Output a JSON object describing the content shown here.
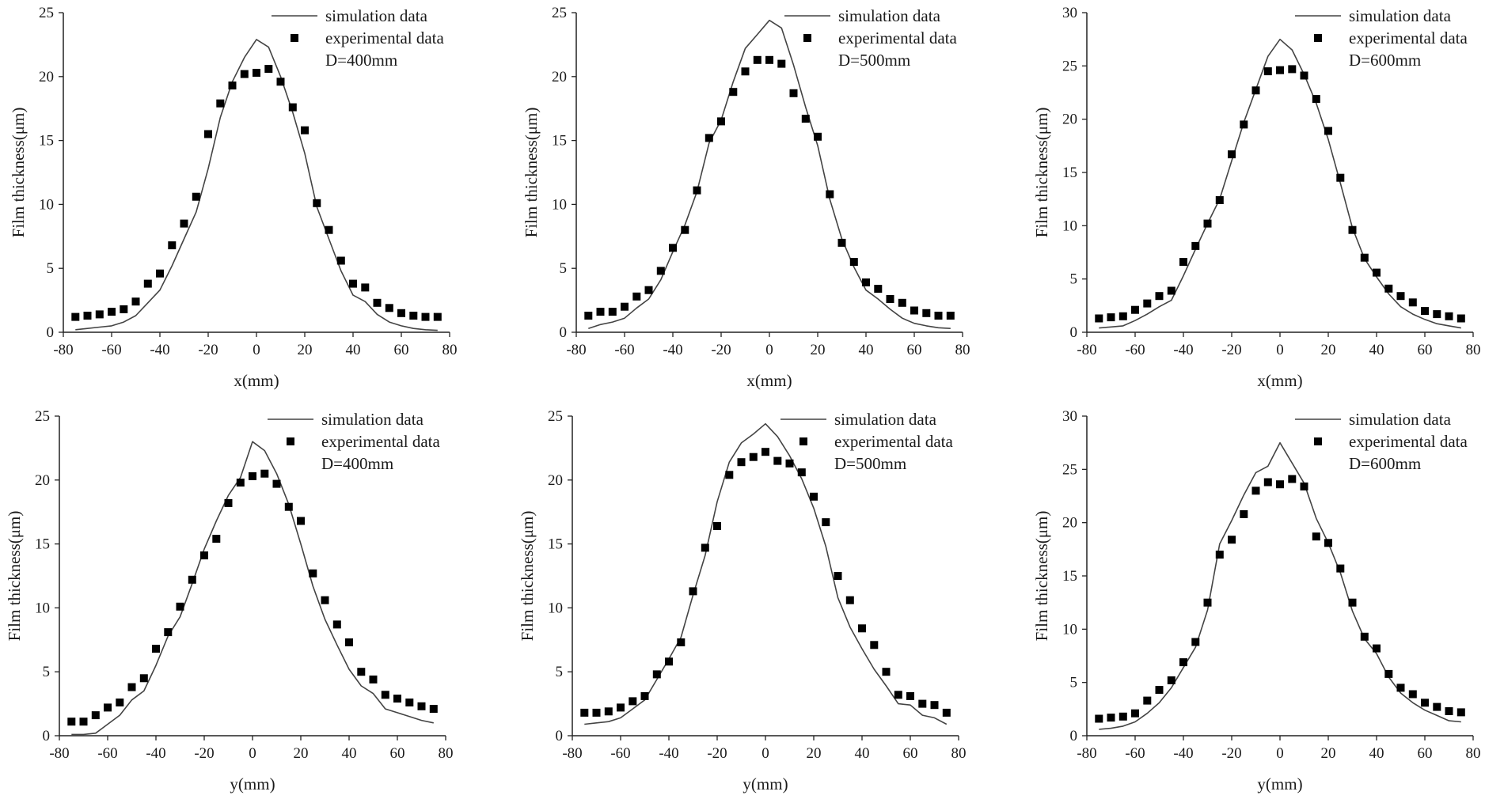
{
  "colors": {
    "line": "#444444",
    "marker": "#000000",
    "axis": "#222222",
    "text": "#1a1a1a"
  },
  "legend": {
    "line_label": "simulation data",
    "marker_label": "experimental data"
  },
  "chart_data": [
    {
      "type": "scatter+line",
      "title": "",
      "xlabel": "x(mm)",
      "ylabel": "Film thickness(μm)",
      "xlim": [
        -80,
        80
      ],
      "ylim": [
        0,
        25
      ],
      "xticks": [
        -80,
        -60,
        -40,
        -20,
        0,
        20,
        40,
        60,
        80
      ],
      "yticks": [
        0,
        5,
        10,
        15,
        20,
        25
      ],
      "annotation": "D=400mm",
      "legend_position": "top-right",
      "series": [
        {
          "name": "simulation data",
          "kind": "line",
          "x": [
            -75,
            -70,
            -65,
            -60,
            -55,
            -50,
            -45,
            -40,
            -35,
            -30,
            -25,
            -20,
            -15,
            -10,
            -5,
            0,
            5,
            10,
            15,
            20,
            25,
            30,
            35,
            40,
            45,
            50,
            55,
            60,
            65,
            70,
            75
          ],
          "y": [
            0.2,
            0.3,
            0.4,
            0.5,
            0.8,
            1.3,
            2.3,
            3.3,
            5.2,
            7.3,
            9.4,
            12.8,
            16.8,
            19.6,
            21.5,
            22.9,
            22.3,
            20.0,
            17.2,
            14.0,
            9.8,
            7.3,
            4.8,
            2.9,
            2.4,
            1.4,
            0.8,
            0.5,
            0.3,
            0.2,
            0.15
          ]
        },
        {
          "name": "experimental data",
          "kind": "scatter",
          "x": [
            -75,
            -70,
            -65,
            -60,
            -55,
            -50,
            -45,
            -40,
            -35,
            -30,
            -25,
            -20,
            -15,
            -10,
            -5,
            0,
            5,
            10,
            15,
            20,
            25,
            30,
            35,
            40,
            45,
            50,
            55,
            60,
            65,
            70,
            75
          ],
          "y": [
            1.2,
            1.3,
            1.4,
            1.6,
            1.8,
            2.4,
            3.8,
            4.6,
            6.8,
            8.5,
            10.6,
            15.5,
            17.9,
            19.3,
            20.2,
            20.3,
            20.6,
            19.6,
            17.6,
            15.8,
            10.1,
            8.0,
            5.6,
            3.8,
            3.5,
            2.3,
            1.9,
            1.5,
            1.3,
            1.2,
            1.2
          ]
        }
      ]
    },
    {
      "type": "scatter+line",
      "title": "",
      "xlabel": "x(mm)",
      "ylabel": "Film thickness(μm)",
      "xlim": [
        -80,
        80
      ],
      "ylim": [
        0,
        25
      ],
      "xticks": [
        -80,
        -60,
        -40,
        -20,
        0,
        20,
        40,
        60,
        80
      ],
      "yticks": [
        0,
        5,
        10,
        15,
        20,
        25
      ],
      "annotation": "D=500mm",
      "legend_position": "top-right",
      "series": [
        {
          "name": "simulation data",
          "kind": "line",
          "x": [
            -75,
            -70,
            -65,
            -60,
            -55,
            -50,
            -45,
            -40,
            -35,
            -30,
            -25,
            -20,
            -15,
            -10,
            -5,
            0,
            5,
            10,
            15,
            20,
            25,
            30,
            35,
            40,
            45,
            50,
            55,
            60,
            65,
            70,
            75
          ],
          "y": [
            0.3,
            0.6,
            0.8,
            1.1,
            1.9,
            2.6,
            4.1,
            6.3,
            8.4,
            11.0,
            14.8,
            16.6,
            19.6,
            22.2,
            23.3,
            24.4,
            23.8,
            20.9,
            17.6,
            14.6,
            10.4,
            7.3,
            5.1,
            3.3,
            2.6,
            1.8,
            1.1,
            0.7,
            0.5,
            0.35,
            0.3
          ]
        },
        {
          "name": "experimental data",
          "kind": "scatter",
          "x": [
            -75,
            -70,
            -65,
            -60,
            -55,
            -50,
            -45,
            -40,
            -35,
            -30,
            -25,
            -20,
            -15,
            -10,
            -5,
            0,
            5,
            10,
            15,
            20,
            25,
            30,
            35,
            40,
            45,
            50,
            55,
            60,
            65,
            70,
            75
          ],
          "y": [
            1.3,
            1.6,
            1.6,
            2.0,
            2.8,
            3.3,
            4.8,
            6.6,
            8.0,
            11.1,
            15.2,
            16.5,
            18.8,
            20.4,
            21.3,
            21.3,
            21.0,
            18.7,
            16.7,
            15.3,
            10.8,
            7.0,
            5.5,
            3.9,
            3.4,
            2.6,
            2.3,
            1.7,
            1.5,
            1.3,
            1.3
          ]
        }
      ]
    },
    {
      "type": "scatter+line",
      "title": "",
      "xlabel": "x(mm)",
      "ylabel": "Film thickness(μm)",
      "xlim": [
        -80,
        80
      ],
      "ylim": [
        0,
        30
      ],
      "xticks": [
        -80,
        -60,
        -40,
        -20,
        0,
        20,
        40,
        60,
        80
      ],
      "yticks": [
        0,
        5,
        10,
        15,
        20,
        25,
        30
      ],
      "annotation": "D=600mm",
      "legend_position": "top-right",
      "series": [
        {
          "name": "simulation data",
          "kind": "line",
          "x": [
            -75,
            -70,
            -65,
            -60,
            -55,
            -50,
            -45,
            -40,
            -35,
            -30,
            -25,
            -20,
            -15,
            -10,
            -5,
            0,
            5,
            10,
            15,
            20,
            25,
            30,
            35,
            40,
            45,
            50,
            55,
            60,
            65,
            70,
            75
          ],
          "y": [
            0.4,
            0.5,
            0.6,
            1.1,
            1.7,
            2.4,
            3.0,
            5.3,
            7.8,
            10.2,
            12.5,
            16.1,
            19.7,
            22.8,
            25.9,
            27.5,
            26.5,
            24.2,
            21.5,
            18.1,
            14.0,
            9.8,
            6.9,
            5.2,
            3.6,
            2.4,
            1.7,
            1.2,
            0.8,
            0.6,
            0.4
          ]
        },
        {
          "name": "experimental data",
          "kind": "scatter",
          "x": [
            -75,
            -70,
            -65,
            -60,
            -55,
            -50,
            -45,
            -40,
            -35,
            -30,
            -25,
            -20,
            -15,
            -10,
            -5,
            0,
            5,
            10,
            15,
            20,
            25,
            30,
            35,
            40,
            45,
            50,
            55,
            60,
            65,
            70,
            75
          ],
          "y": [
            1.3,
            1.4,
            1.5,
            2.1,
            2.7,
            3.4,
            3.9,
            6.6,
            8.1,
            10.2,
            12.4,
            16.7,
            19.5,
            22.7,
            24.5,
            24.6,
            24.7,
            24.1,
            21.9,
            18.9,
            14.5,
            9.6,
            7.0,
            5.6,
            4.1,
            3.4,
            2.8,
            2.0,
            1.7,
            1.5,
            1.3
          ]
        }
      ]
    },
    {
      "type": "scatter+line",
      "title": "",
      "xlabel": "y(mm)",
      "ylabel": "Film thickness(μm)",
      "xlim": [
        -80,
        80
      ],
      "ylim": [
        0,
        25
      ],
      "xticks": [
        -80,
        -60,
        -40,
        -20,
        0,
        20,
        40,
        60,
        80
      ],
      "yticks": [
        0,
        5,
        10,
        15,
        20,
        25
      ],
      "annotation": "D=400mm",
      "legend_position": "top-right",
      "series": [
        {
          "name": "simulation data",
          "kind": "line",
          "x": [
            -75,
            -70,
            -65,
            -60,
            -55,
            -50,
            -45,
            -40,
            -35,
            -30,
            -25,
            -20,
            -15,
            -10,
            -5,
            0,
            5,
            10,
            15,
            20,
            25,
            30,
            35,
            40,
            45,
            50,
            55,
            60,
            65,
            70,
            75
          ],
          "y": [
            0.1,
            0.1,
            0.2,
            0.9,
            1.6,
            2.8,
            3.5,
            5.5,
            7.8,
            9.3,
            11.9,
            14.6,
            16.8,
            18.8,
            20.2,
            23.0,
            22.3,
            20.5,
            18.1,
            15.0,
            11.7,
            9.1,
            7.1,
            5.2,
            3.9,
            3.3,
            2.1,
            1.8,
            1.5,
            1.2,
            1.0
          ]
        },
        {
          "name": "experimental data",
          "kind": "scatter",
          "x": [
            -75,
            -70,
            -65,
            -60,
            -55,
            -50,
            -45,
            -40,
            -35,
            -30,
            -25,
            -20,
            -15,
            -10,
            -5,
            0,
            5,
            10,
            15,
            20,
            25,
            30,
            35,
            40,
            45,
            50,
            55,
            60,
            65,
            70,
            75
          ],
          "y": [
            1.1,
            1.1,
            1.6,
            2.2,
            2.6,
            3.8,
            4.5,
            6.8,
            8.1,
            10.1,
            12.2,
            14.1,
            15.4,
            18.2,
            19.8,
            20.3,
            20.5,
            19.7,
            17.9,
            16.8,
            12.7,
            10.6,
            8.7,
            7.3,
            5.0,
            4.4,
            3.2,
            2.9,
            2.6,
            2.3,
            2.1
          ]
        }
      ]
    },
    {
      "type": "scatter+line",
      "title": "",
      "xlabel": "y(mm)",
      "ylabel": "Film thickness(μm)",
      "xlim": [
        -80,
        80
      ],
      "ylim": [
        0,
        25
      ],
      "xticks": [
        -80,
        -60,
        -40,
        -20,
        0,
        20,
        40,
        60,
        80
      ],
      "yticks": [
        0,
        5,
        10,
        15,
        20,
        25
      ],
      "annotation": "D=500mm",
      "legend_position": "top-right",
      "series": [
        {
          "name": "simulation data",
          "kind": "line",
          "x": [
            -75,
            -70,
            -65,
            -60,
            -55,
            -50,
            -45,
            -40,
            -35,
            -30,
            -25,
            -20,
            -15,
            -10,
            -5,
            0,
            5,
            10,
            15,
            20,
            25,
            30,
            35,
            40,
            45,
            50,
            55,
            60,
            65,
            70,
            75
          ],
          "y": [
            0.9,
            1.0,
            1.1,
            1.4,
            2.1,
            2.8,
            4.4,
            6.0,
            7.7,
            11.0,
            14.1,
            18.3,
            21.4,
            22.9,
            23.6,
            24.4,
            23.4,
            21.9,
            20.1,
            17.8,
            14.8,
            10.8,
            8.5,
            6.8,
            5.2,
            3.9,
            2.5,
            2.4,
            1.6,
            1.4,
            0.9
          ]
        },
        {
          "name": "experimental data",
          "kind": "scatter",
          "x": [
            -75,
            -70,
            -65,
            -60,
            -55,
            -50,
            -45,
            -40,
            -35,
            -30,
            -25,
            -20,
            -15,
            -10,
            -5,
            0,
            5,
            10,
            15,
            20,
            25,
            30,
            35,
            40,
            45,
            50,
            55,
            60,
            65,
            70,
            75
          ],
          "y": [
            1.8,
            1.8,
            1.9,
            2.2,
            2.7,
            3.1,
            4.8,
            5.8,
            7.3,
            11.3,
            14.7,
            16.4,
            20.4,
            21.4,
            21.8,
            22.2,
            21.5,
            21.3,
            20.6,
            18.7,
            16.7,
            12.5,
            10.6,
            8.4,
            7.1,
            5.0,
            3.2,
            3.1,
            2.5,
            2.4,
            1.8
          ]
        }
      ]
    },
    {
      "type": "scatter+line",
      "title": "",
      "xlabel": "y(mm)",
      "ylabel": "Film thickness(μm)",
      "xlim": [
        -80,
        80
      ],
      "ylim": [
        0,
        30
      ],
      "xticks": [
        -80,
        -60,
        -40,
        -20,
        0,
        20,
        40,
        60,
        80
      ],
      "yticks": [
        0,
        5,
        10,
        15,
        20,
        25,
        30
      ],
      "annotation": "D=600mm",
      "legend_position": "top-right",
      "series": [
        {
          "name": "simulation data",
          "kind": "line",
          "x": [
            -75,
            -70,
            -65,
            -60,
            -55,
            -50,
            -45,
            -40,
            -35,
            -30,
            -25,
            -20,
            -15,
            -10,
            -5,
            0,
            5,
            10,
            15,
            20,
            25,
            30,
            35,
            40,
            45,
            50,
            55,
            60,
            65,
            70,
            75
          ],
          "y": [
            0.6,
            0.7,
            0.9,
            1.3,
            2.1,
            3.1,
            4.5,
            6.4,
            8.3,
            11.8,
            18.0,
            20.2,
            22.6,
            24.7,
            25.3,
            27.5,
            25.6,
            23.7,
            20.4,
            18.1,
            15.3,
            11.7,
            9.1,
            7.7,
            5.5,
            4.0,
            3.1,
            2.4,
            1.9,
            1.4,
            1.3
          ]
        },
        {
          "name": "experimental data",
          "kind": "scatter",
          "x": [
            -75,
            -70,
            -65,
            -60,
            -55,
            -50,
            -45,
            -40,
            -35,
            -30,
            -25,
            -20,
            -15,
            -10,
            -5,
            0,
            5,
            10,
            15,
            20,
            25,
            30,
            35,
            40,
            45,
            50,
            55,
            60,
            65,
            70,
            75
          ],
          "y": [
            1.6,
            1.7,
            1.8,
            2.1,
            3.3,
            4.3,
            5.2,
            6.9,
            8.8,
            12.5,
            17.0,
            18.4,
            20.8,
            23.0,
            23.8,
            23.6,
            24.1,
            23.4,
            18.7,
            18.1,
            15.7,
            12.5,
            9.3,
            8.2,
            5.8,
            4.5,
            3.9,
            3.1,
            2.7,
            2.3,
            2.2
          ]
        }
      ]
    }
  ]
}
